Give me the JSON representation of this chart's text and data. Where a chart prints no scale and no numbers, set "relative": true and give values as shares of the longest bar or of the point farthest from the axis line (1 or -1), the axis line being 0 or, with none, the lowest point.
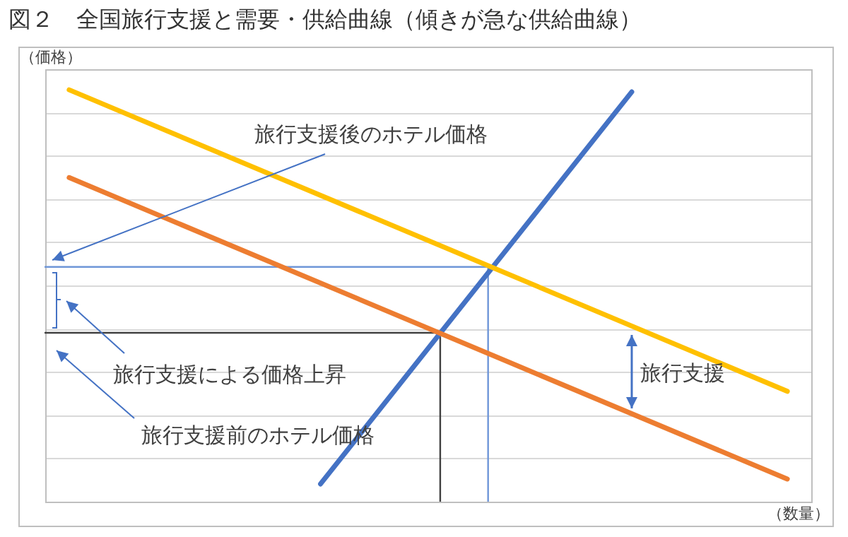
{
  "chart_data": {
    "type": "line",
    "title": "図２　全国旅行支援と需要・供給曲線（傾きが急な供給曲線）",
    "xlabel": "（数量）",
    "ylabel": "（価格）",
    "relative": true,
    "grid": "y",
    "legend": false,
    "categories": [
      null,
      null,
      null,
      null,
      null,
      null,
      null,
      null,
      null,
      null,
      null,
      null,
      null,
      null,
      null,
      null,
      null,
      null,
      null,
      null,
      null,
      null,
      null,
      null,
      null,
      null,
      null,
      null,
      null,
      null,
      null,
      null,
      null,
      null,
      null,
      null,
      null,
      null,
      null,
      null,
      null,
      null,
      null,
      null,
      null,
      null,
      null,
      null,
      null,
      null,
      null,
      null,
      null,
      null,
      null,
      null,
      null,
      null,
      null,
      null,
      null,
      null,
      null,
      null,
      null
    ],
    "series": [
      {
        "color": "#ffc000",
        "values": [
          null,
          null,
          1,
          null,
          null,
          null,
          null,
          null,
          null,
          null,
          null,
          null,
          null,
          null,
          null,
          null,
          null,
          null,
          null,
          null,
          null,
          null,
          null,
          null,
          null,
          null,
          null,
          null,
          null,
          null,
          null,
          null,
          null,
          null,
          null,
          null,
          null,
          null,
          null,
          null,
          null,
          null,
          null,
          null,
          null,
          null,
          null,
          null,
          null,
          null,
          null,
          null,
          null,
          null,
          null,
          null,
          null,
          null,
          null,
          null,
          null,
          null,
          0.268,
          null,
          null
        ]
      },
      {
        "color": "#ed7d31",
        "values": [
          null,
          null,
          0.787,
          null,
          null,
          null,
          null,
          null,
          null,
          null,
          null,
          null,
          null,
          null,
          null,
          null,
          null,
          null,
          null,
          null,
          null,
          null,
          null,
          null,
          null,
          null,
          null,
          null,
          null,
          null,
          null,
          null,
          null,
          null,
          null,
          null,
          null,
          null,
          null,
          null,
          null,
          null,
          null,
          null,
          null,
          null,
          null,
          null,
          null,
          null,
          null,
          null,
          null,
          null,
          null,
          null,
          null,
          null,
          null,
          null,
          null,
          null,
          0.055,
          null,
          null
        ]
      },
      {
        "color": "#4472c4",
        "values": [
          null,
          null,
          null,
          null,
          null,
          null,
          null,
          null,
          null,
          null,
          null,
          null,
          null,
          null,
          null,
          null,
          null,
          null,
          null,
          null,
          null,
          null,
          null,
          0.043,
          null,
          null,
          null,
          null,
          null,
          null,
          null,
          null,
          null,
          null,
          null,
          null,
          null,
          null,
          null,
          null,
          null,
          null,
          null,
          null,
          null,
          null,
          null,
          null,
          null,
          0.995,
          null,
          null,
          null,
          null,
          null,
          null,
          null,
          null,
          null,
          null,
          null,
          null,
          null,
          null,
          null
        ]
      },
      {
        "type": "step",
        "color": "#404040",
        "values": [
          0.41,
          null,
          null,
          null,
          null,
          null,
          null,
          null,
          null,
          null,
          null,
          null,
          null,
          null,
          null,
          null,
          null,
          null,
          null,
          null,
          null,
          null,
          null,
          null,
          null,
          null,
          null,
          null,
          null,
          null,
          null,
          null,
          null,
          0,
          null,
          null,
          null,
          null,
          null,
          null,
          null,
          null,
          null,
          null,
          null,
          null,
          null,
          null,
          null,
          null,
          null,
          null,
          null,
          null,
          null,
          null,
          null,
          null,
          null,
          null,
          null,
          null,
          null,
          null,
          null
        ]
      },
      {
        "type": "step",
        "color": "#6f96d8",
        "values": [
          0.57,
          null,
          null,
          null,
          null,
          null,
          null,
          null,
          null,
          null,
          null,
          null,
          null,
          null,
          null,
          null,
          null,
          null,
          null,
          null,
          null,
          null,
          null,
          null,
          null,
          null,
          null,
          null,
          null,
          null,
          null,
          null,
          null,
          null,
          null,
          null,
          null,
          0,
          null,
          null,
          null,
          null,
          null,
          null,
          null,
          null,
          null,
          null,
          null,
          null,
          null,
          null,
          null,
          null,
          null,
          null,
          null,
          null,
          null,
          null,
          null,
          null,
          null,
          null,
          null
        ]
      }
    ],
    "annotations": [
      "旅行支援後のホテル価格",
      "旅行支援による価格上昇",
      "旅行支援前のホテル価格",
      "旅行支援"
    ]
  }
}
